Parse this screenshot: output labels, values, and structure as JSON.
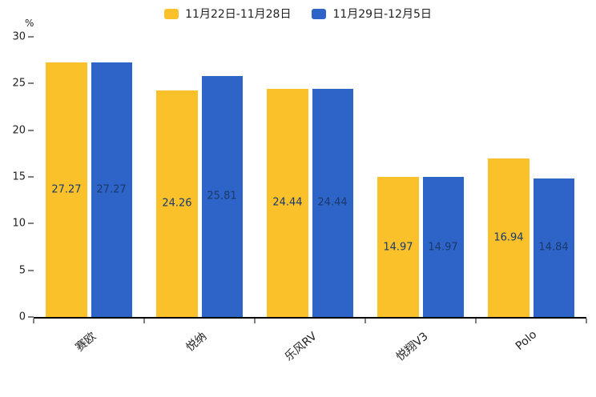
{
  "chart_data": {
    "type": "bar",
    "title": "",
    "categories": [
      "赛欧",
      "悦纳",
      "乐风RV",
      "悦翔V3",
      "Polo"
    ],
    "series": [
      {
        "name": "11月22日-11月28日",
        "color": "#FBC12B",
        "values": [
          27.27,
          24.26,
          24.44,
          14.97,
          16.94
        ]
      },
      {
        "name": "11月29日-12月5日",
        "color": "#2E63C8",
        "values": [
          27.27,
          25.81,
          24.44,
          14.97,
          14.84
        ]
      }
    ],
    "xlabel": "",
    "ylabel": "%",
    "ylim": [
      0,
      30
    ],
    "yticks": [
      0,
      5,
      10,
      15,
      20,
      25,
      30
    ],
    "grid": false,
    "legend_position": "top",
    "value_label_color": "#1A3A6B",
    "axis_color": "#000000",
    "background_color": "#FFFFFF"
  }
}
